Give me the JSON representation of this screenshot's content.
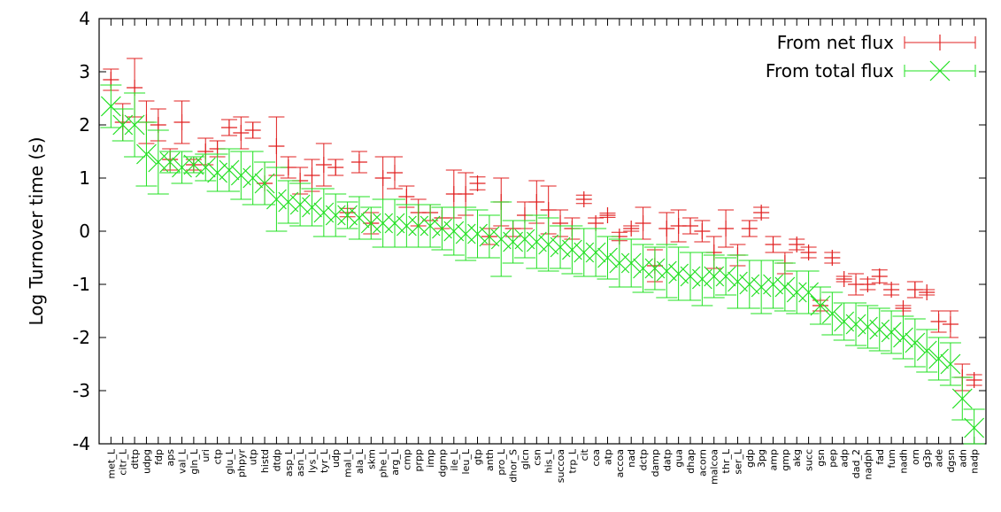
{
  "chart_data": {
    "type": "scatter",
    "xlabel": "",
    "ylabel": "Log Turnover time (s)",
    "ylim": [
      -4,
      4
    ],
    "yticks": [
      "-4",
      "-3",
      "-2",
      "-1",
      "0",
      "1",
      "2",
      "3",
      "4"
    ],
    "grid": false,
    "legend_position": "top-right",
    "categories": [
      "met_L",
      "citr_L",
      "dttp",
      "udpg",
      "fdp",
      "aps",
      "val_L",
      "gln_L",
      "uri",
      "ctp",
      "glu_L",
      "phpyr",
      "utp",
      "histd",
      "dtdp",
      "asp_L",
      "asn_L",
      "lys_L",
      "tyr_L",
      "udp",
      "mal_L",
      "ala_L",
      "skm",
      "phe_L",
      "arg_L",
      "cmp",
      "prpp",
      "imp",
      "dgmp",
      "ile_L",
      "leu_L",
      "gtp",
      "anth",
      "pro_L",
      "dhor_S",
      "glcn",
      "csn",
      "his_L",
      "succoa",
      "trp_L",
      "cit",
      "coa",
      "atp",
      "accoa",
      "nad",
      "dctp",
      "damp",
      "datp",
      "gua",
      "dhap",
      "acorn",
      "malcoa",
      "thr_L",
      "ser_L",
      "gdp",
      "3pg",
      "amp",
      "gmp",
      "akg",
      "succ",
      "gsn",
      "pep",
      "adp",
      "dad_2",
      "nadph",
      "fad",
      "fum",
      "nadh",
      "orn",
      "g3p",
      "ade",
      "dgsn",
      "adn",
      "nadp"
    ],
    "series": [
      {
        "name": "From net flux",
        "color": "#e02020",
        "marker": "plus",
        "values": [
          2.85,
          2.05,
          2.7,
          2.05,
          2.0,
          1.35,
          2.05,
          1.25,
          1.5,
          1.55,
          1.95,
          1.85,
          1.9,
          0.9,
          1.6,
          1.2,
          0.95,
          1.05,
          1.25,
          1.2,
          0.35,
          1.3,
          0.15,
          1.0,
          1.1,
          0.65,
          0.35,
          0.35,
          0.25,
          0.7,
          0.7,
          0.9,
          -0.1,
          0.55,
          0.05,
          0.3,
          0.55,
          0.4,
          0.15,
          0.05,
          0.6,
          0.15,
          0.3,
          -0.1,
          0.05,
          0.15,
          -0.65,
          0.05,
          0.1,
          0.1,
          0.0,
          -0.4,
          0.05,
          -0.45,
          0.05,
          0.35,
          -0.25,
          -0.6,
          -0.25,
          -0.4,
          -1.4,
          -0.5,
          -0.9,
          -1.0,
          -1.0,
          -0.85,
          -1.1,
          -1.45,
          -1.1,
          -1.15,
          -1.7,
          -1.75,
          -2.75,
          -2.8
        ],
        "err": [
          0.2,
          0.35,
          0.55,
          0.4,
          0.3,
          0.2,
          0.4,
          0.1,
          0.25,
          0.15,
          0.15,
          0.3,
          0.15,
          0.4,
          0.55,
          0.2,
          0.25,
          0.3,
          0.4,
          0.15,
          0.08,
          0.2,
          0.2,
          0.4,
          0.3,
          0.2,
          0.25,
          0.15,
          0.2,
          0.45,
          0.4,
          0.12,
          0.15,
          0.45,
          0.15,
          0.25,
          0.4,
          0.45,
          0.25,
          0.2,
          0.08,
          0.1,
          0.04,
          0.08,
          0.05,
          0.3,
          0.3,
          0.3,
          0.3,
          0.15,
          0.2,
          0.3,
          0.35,
          0.2,
          0.15,
          0.1,
          0.15,
          0.2,
          0.1,
          0.1,
          0.1,
          0.1,
          0.05,
          0.2,
          0.1,
          0.12,
          0.1,
          0.05,
          0.15,
          0.05,
          0.2,
          0.25,
          0.25,
          0.1
        ]
      },
      {
        "name": "From total flux",
        "color": "#20e020",
        "marker": "cross",
        "values": [
          2.35,
          2.0,
          2.0,
          1.45,
          1.3,
          1.3,
          1.2,
          1.25,
          1.2,
          1.1,
          1.15,
          1.05,
          1.0,
          0.9,
          0.6,
          0.55,
          0.5,
          0.45,
          0.35,
          0.3,
          0.3,
          0.25,
          0.15,
          0.15,
          0.15,
          0.1,
          0.1,
          0.1,
          0.05,
          0.0,
          -0.05,
          -0.05,
          -0.1,
          -0.15,
          -0.2,
          -0.15,
          -0.2,
          -0.25,
          -0.3,
          -0.35,
          -0.4,
          -0.4,
          -0.5,
          -0.6,
          -0.6,
          -0.7,
          -0.7,
          -0.75,
          -0.8,
          -0.85,
          -0.9,
          -0.85,
          -0.85,
          -0.95,
          -1.0,
          -1.05,
          -1.0,
          -1.05,
          -1.15,
          -1.15,
          -1.4,
          -1.55,
          -1.7,
          -1.75,
          -1.8,
          -1.85,
          -1.9,
          -2.0,
          -2.1,
          -2.25,
          -2.4,
          -2.5,
          -3.15,
          -3.7
        ],
        "err": [
          0.4,
          0.3,
          0.6,
          0.6,
          0.6,
          0.2,
          0.3,
          0.15,
          0.25,
          0.35,
          0.4,
          0.45,
          0.5,
          0.4,
          0.6,
          0.4,
          0.4,
          0.35,
          0.45,
          0.4,
          0.25,
          0.4,
          0.3,
          0.45,
          0.45,
          0.4,
          0.4,
          0.4,
          0.4,
          0.45,
          0.5,
          0.45,
          0.4,
          0.7,
          0.4,
          0.35,
          0.5,
          0.5,
          0.4,
          0.45,
          0.45,
          0.45,
          0.4,
          0.45,
          0.45,
          0.45,
          0.4,
          0.5,
          0.5,
          0.45,
          0.5,
          0.4,
          0.35,
          0.5,
          0.45,
          0.5,
          0.45,
          0.45,
          0.4,
          0.4,
          0.35,
          0.4,
          0.35,
          0.4,
          0.4,
          0.4,
          0.4,
          0.4,
          0.45,
          0.4,
          0.4,
          0.4,
          0.4,
          0.35
        ]
      }
    ]
  }
}
